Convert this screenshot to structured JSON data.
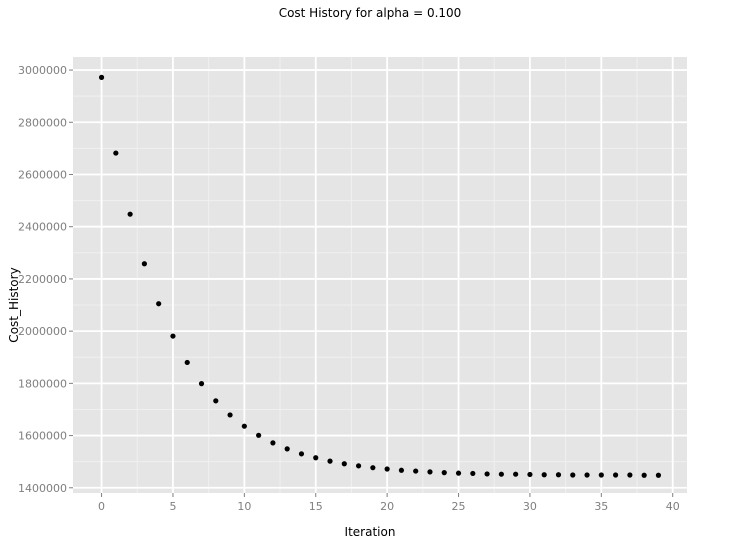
{
  "chart_data": {
    "type": "scatter",
    "title": "Cost History for alpha = 0.100",
    "xlabel": "Iteration",
    "ylabel": "Cost_History",
    "xlim": [
      -2,
      41
    ],
    "ylim": [
      1380000,
      3050000
    ],
    "x_ticks": [
      0,
      5,
      10,
      15,
      20,
      25,
      30,
      35,
      40
    ],
    "y_ticks": [
      1400000,
      1600000,
      1800000,
      2000000,
      2200000,
      2400000,
      2600000,
      2800000,
      3000000
    ],
    "grid": true,
    "legend": "none",
    "colors": {
      "panel_background": "#e5e5e5",
      "grid_major": "#ffffff",
      "grid_minor": "#f0f0f0",
      "point": "#000000",
      "tick_label": "#7f7f7f",
      "text": "#000000"
    },
    "series": [
      {
        "x": [
          0,
          1,
          2,
          3,
          4,
          5,
          6,
          7,
          8,
          9,
          10,
          11,
          12,
          13,
          14,
          15,
          16,
          17,
          18,
          19,
          20,
          21,
          22,
          23,
          24,
          25,
          26,
          27,
          28,
          29,
          30,
          31,
          32,
          33,
          34,
          35,
          36,
          37,
          38,
          39
        ],
        "y": [
          2972000,
          2682000,
          2448000,
          2258000,
          2105000,
          1981000,
          1880000,
          1799000,
          1733000,
          1679000,
          1636000,
          1601000,
          1572000,
          1549000,
          1530000,
          1515000,
          1502000,
          1492000,
          1484000,
          1477000,
          1472000,
          1467000,
          1464000,
          1461000,
          1458000,
          1456000,
          1455000,
          1453000,
          1452000,
          1452000,
          1451000,
          1450000,
          1450000,
          1449000,
          1449000,
          1449000,
          1449000,
          1449000,
          1448000,
          1448000
        ]
      }
    ]
  }
}
